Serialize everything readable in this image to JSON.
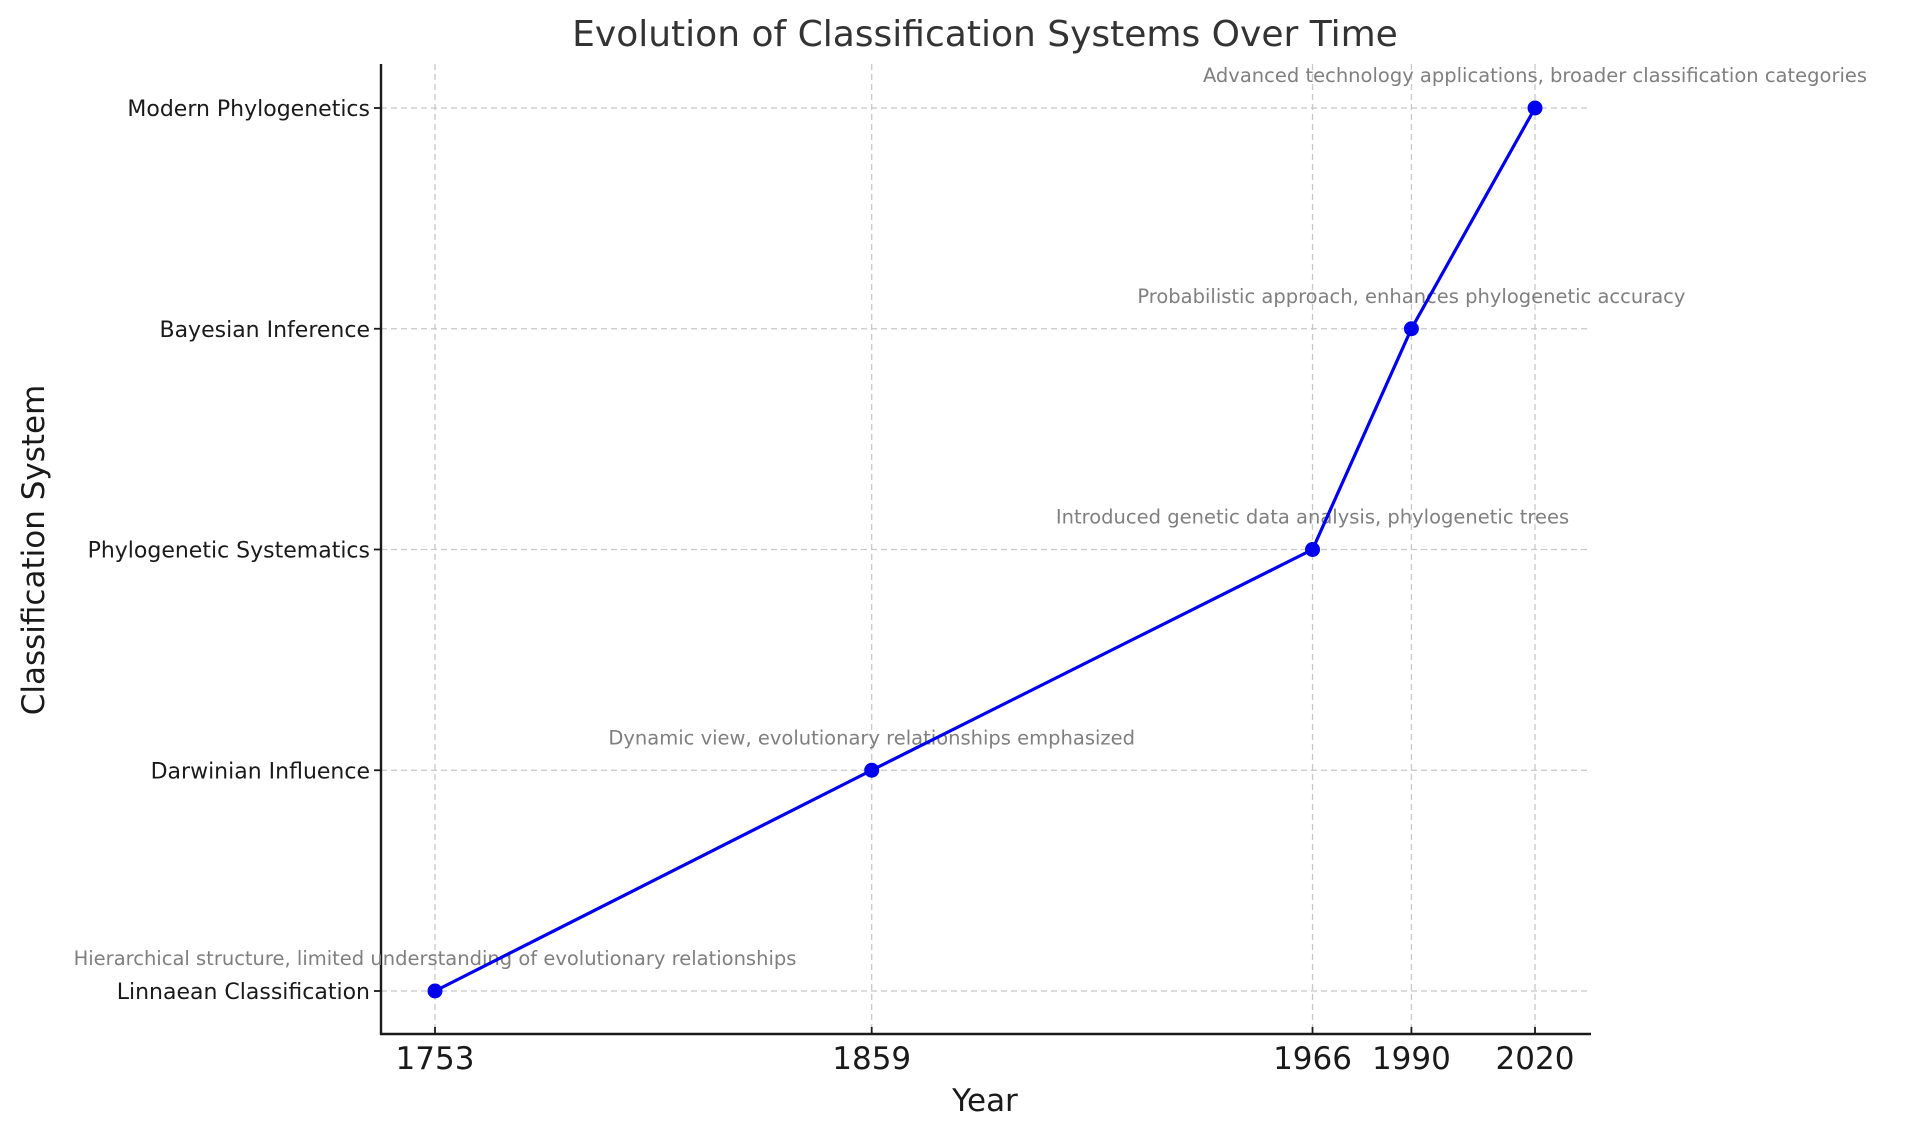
{
  "chart_data": {
    "type": "line",
    "title": "Evolution of Classification Systems Over Time",
    "xlabel": "Year",
    "ylabel": "Classification System",
    "x": [
      1753,
      1859,
      1966,
      1990,
      2020
    ],
    "categories_y": [
      "Linnaean Classification",
      "Darwinian Influence",
      "Phylogenetic Systematics",
      "Bayesian Inference",
      "Modern Phylogenetics"
    ],
    "series": [
      {
        "name": "Classification System",
        "color": "#0000ee",
        "marker": "circle",
        "values": [
          "Linnaean Classification",
          "Darwinian Influence",
          "Phylogenetic Systematics",
          "Bayesian Inference",
          "Modern Phylogenetics"
        ]
      }
    ],
    "annotations": [
      {
        "x": 1753,
        "y": "Linnaean Classification",
        "text": "Hierarchical structure, limited understanding of evolutionary relationships"
      },
      {
        "x": 1859,
        "y": "Darwinian Influence",
        "text": "Dynamic view, evolutionary relationships emphasized"
      },
      {
        "x": 1966,
        "y": "Phylogenetic Systematics",
        "text": "Introduced genetic data analysis, phylogenetic trees"
      },
      {
        "x": 1990,
        "y": "Bayesian Inference",
        "text": "Probabilistic approach, enhances phylogenetic accuracy"
      },
      {
        "x": 2020,
        "y": "Modern Phylogenetics",
        "text": "Advanced technology applications, broader classification categories"
      }
    ],
    "xticks": [
      "1753",
      "1859",
      "1966",
      "1990",
      "2020"
    ],
    "xlim": [
      1740,
      2034
    ],
    "grid": true,
    "legend": null
  },
  "colors": {
    "line": "#0000ee",
    "grid": "#c8c8c8",
    "annotation": "#7f7f7f",
    "text": "#1a1a1a"
  }
}
